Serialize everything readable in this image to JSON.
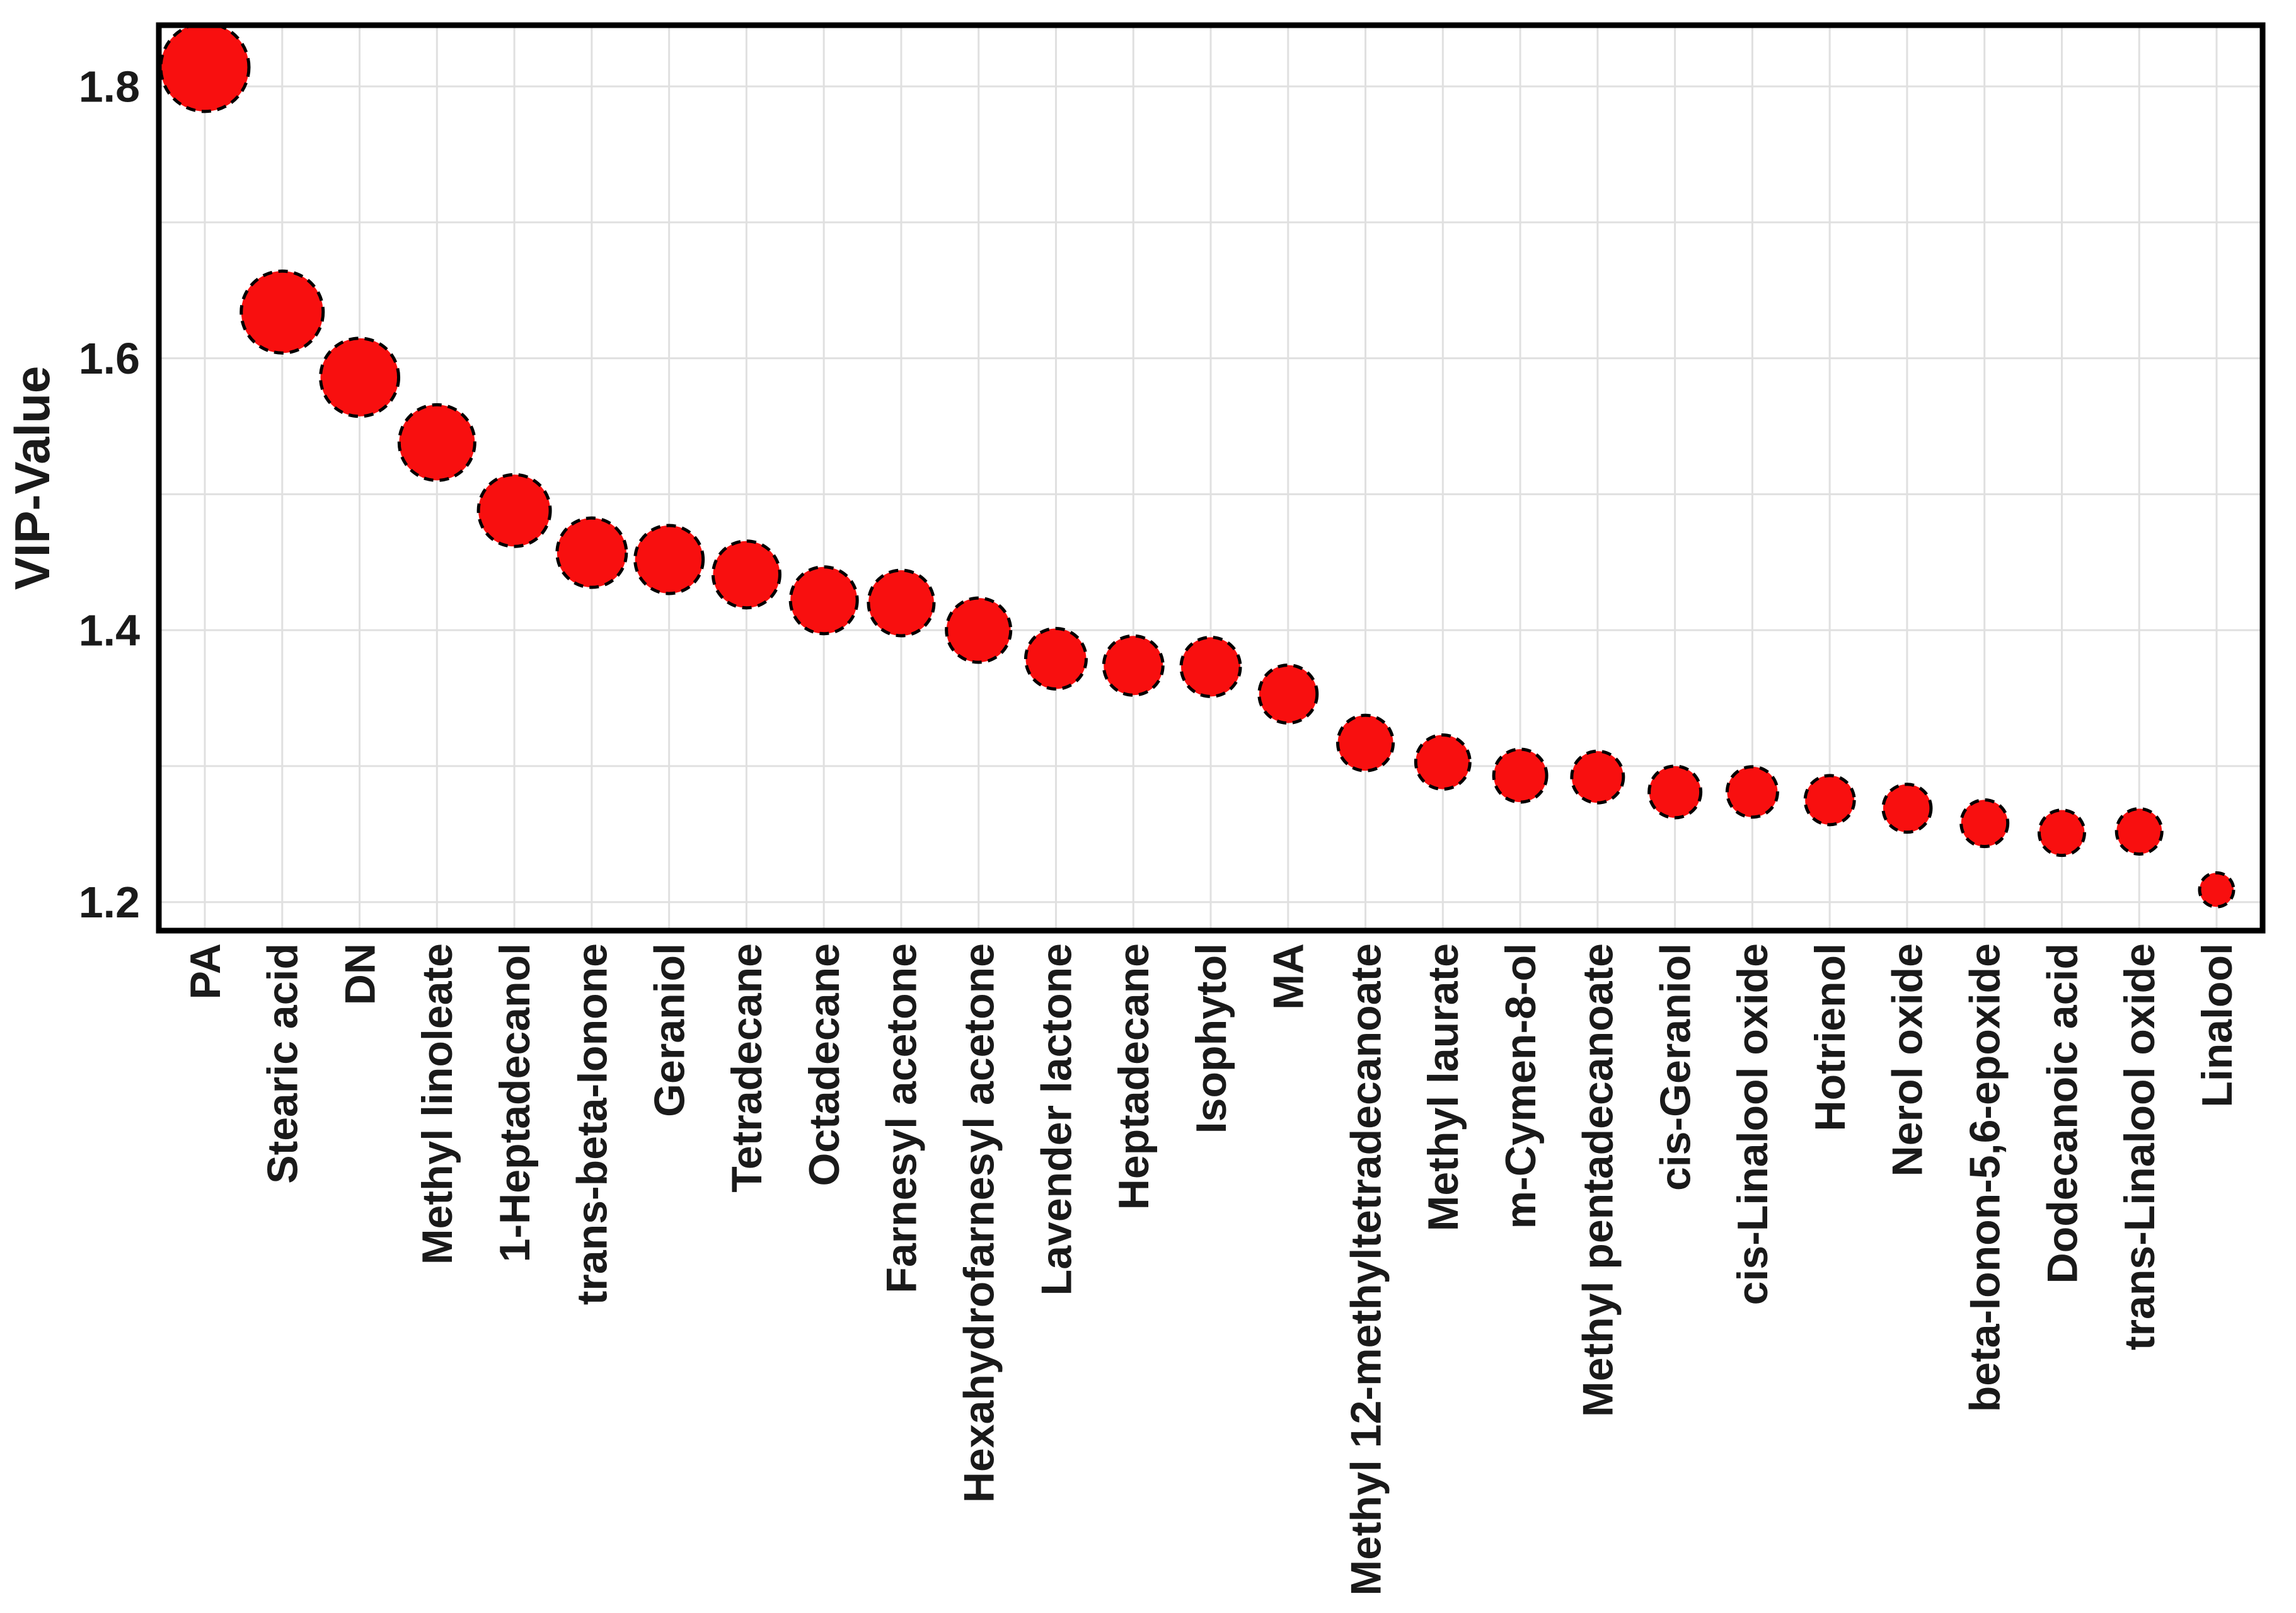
{
  "figure": {
    "background": "#ffffff"
  },
  "chart_data": {
    "type": "scatter",
    "subtype": "bubble",
    "title": "",
    "xlabel": "",
    "ylabel": "VIP-Value",
    "ylim": [
      1.179,
      1.845
    ],
    "ytick_values": [
      1.8,
      1.6,
      1.4,
      1.2
    ],
    "ytick_labels": [
      "1.8",
      "1.6",
      "1.4",
      "1.2"
    ],
    "grid": {
      "horizontal_interval": 0.1,
      "horizontal_lines": [
        1.2,
        1.3,
        1.4,
        1.5,
        1.6,
        1.7,
        1.8
      ],
      "vertical": "one line per category",
      "color": "#e0e0e0"
    },
    "legend": "none",
    "categories": [
      "PA",
      "Stearic acid",
      "DN",
      "Methyl linoleate",
      "1-Heptadecanol",
      "trans-beta-Ionone",
      "Geraniol",
      "Tetradecane",
      "Octadecane",
      "Farnesyl acetone",
      "Hexahydrofarnesyl acetone",
      "Lavender lactone",
      "Heptadecane",
      "Isophytol",
      "MA",
      "Methyl 12-methyltetradecanoate",
      "Methyl laurate",
      "m-Cymen-8-ol",
      "Methyl pentadecanoate",
      "cis-Geraniol",
      "cis-Linalool oxide",
      "Hotrienol",
      "Nerol oxide",
      "beta-Ionon-5,6-epoxide",
      "Dodecanoic acid",
      "trans-Linalool oxide",
      "Linalool"
    ],
    "values": [
      1.814,
      1.634,
      1.586,
      1.538,
      1.488,
      1.457,
      1.452,
      1.441,
      1.422,
      1.42,
      1.4,
      1.379,
      1.374,
      1.373,
      1.353,
      1.317,
      1.303,
      1.293,
      1.292,
      1.281,
      1.281,
      1.275,
      1.269,
      1.258,
      1.251,
      1.252,
      1.209
    ],
    "point_radius_px": [
      70,
      65,
      62,
      60,
      57,
      55,
      54,
      53,
      53,
      52,
      51,
      48,
      47,
      47,
      46,
      44,
      43,
      42,
      41,
      41,
      40,
      39,
      38,
      37,
      36,
      36,
      27
    ],
    "style": {
      "point_fill": "#f80f0f",
      "point_stroke": "#000000",
      "point_stroke_dashed": true,
      "axis_color": "#000000",
      "text_color": "#1a1a1a"
    }
  }
}
